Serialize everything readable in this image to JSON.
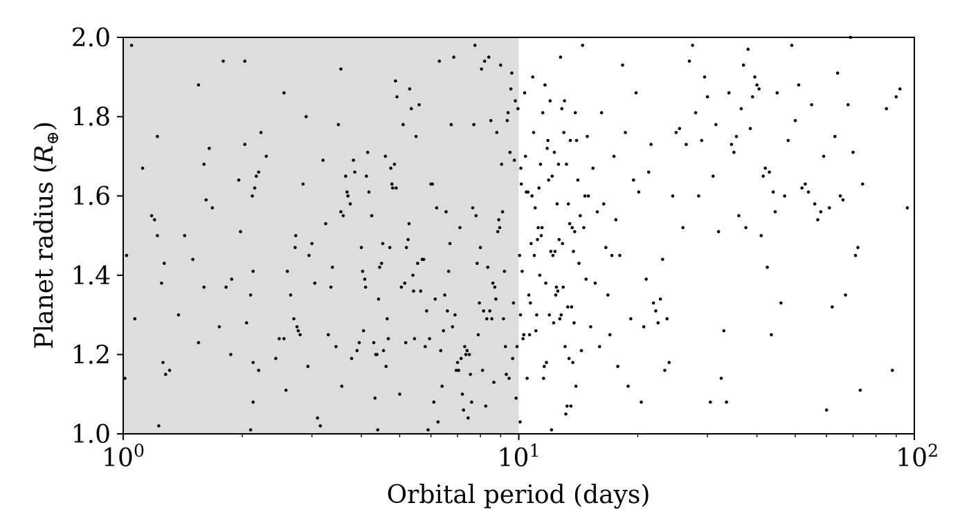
{
  "chart_data": {
    "type": "scatter",
    "title": "",
    "xlabel": "Orbital period (days)",
    "ylabel_text": "Planet radius (",
    "ylabel_symbol": "R",
    "ylabel_subscript": "⊕",
    "ylabel_close": ")",
    "xscale": "log",
    "xlim": [
      1,
      100
    ],
    "ylim": [
      1.0,
      2.0
    ],
    "x_ticks": [
      {
        "value": 1,
        "base": "10",
        "exp": "0"
      },
      {
        "value": 10,
        "base": "10",
        "exp": "1"
      },
      {
        "value": 100,
        "base": "10",
        "exp": "2"
      }
    ],
    "y_ticks": [
      {
        "value": 1.0,
        "label": "1.0"
      },
      {
        "value": 1.2,
        "label": "1.2"
      },
      {
        "value": 1.4,
        "label": "1.4"
      },
      {
        "value": 1.6,
        "label": "1.6"
      },
      {
        "value": 1.8,
        "label": "1.8"
      },
      {
        "value": 2.0,
        "label": "2.0"
      }
    ],
    "shaded_region": {
      "x": [
        1,
        10
      ],
      "color": "#dddddd"
    },
    "marker_color": "#000000",
    "grid": false,
    "points": [
      [
        1.05,
        1.98
      ],
      [
        1.02,
        1.45
      ],
      [
        1.01,
        1.14
      ],
      [
        1.07,
        1.29
      ],
      [
        1.12,
        1.67
      ],
      [
        1.18,
        1.55
      ],
      [
        1.2,
        1.54
      ],
      [
        1.22,
        1.75
      ],
      [
        1.22,
        1.5
      ],
      [
        1.25,
        1.38
      ],
      [
        1.27,
        1.43
      ],
      [
        1.26,
        1.18
      ],
      [
        1.28,
        1.15
      ],
      [
        1.31,
        1.16
      ],
      [
        1.23,
        1.02
      ],
      [
        1.38,
        1.3
      ],
      [
        1.43,
        1.5
      ],
      [
        1.5,
        1.44
      ],
      [
        1.55,
        1.88
      ],
      [
        1.6,
        1.68
      ],
      [
        1.62,
        1.59
      ],
      [
        1.65,
        1.72
      ],
      [
        1.68,
        1.57
      ],
      [
        1.6,
        1.37
      ],
      [
        1.55,
        1.23
      ],
      [
        1.75,
        1.27
      ],
      [
        1.82,
        1.37
      ],
      [
        1.87,
        1.2
      ],
      [
        1.88,
        1.39
      ],
      [
        1.96,
        1.64
      ],
      [
        1.98,
        1.51
      ],
      [
        2.03,
        1.73
      ],
      [
        1.79,
        1.94
      ],
      [
        2.03,
        1.94
      ],
      [
        2.12,
        1.6
      ],
      [
        2.15,
        1.62
      ],
      [
        2.17,
        1.65
      ],
      [
        2.2,
        1.66
      ],
      [
        2.23,
        1.76
      ],
      [
        2.13,
        1.41
      ],
      [
        2.1,
        1.35
      ],
      [
        2.05,
        1.28
      ],
      [
        2.13,
        1.18
      ],
      [
        2.2,
        1.16
      ],
      [
        2.13,
        1.08
      ],
      [
        2.1,
        1.01
      ],
      [
        2.3,
        1.7
      ],
      [
        2.43,
        1.19
      ],
      [
        2.48,
        1.24
      ],
      [
        2.55,
        1.24
      ],
      [
        2.58,
        1.11
      ],
      [
        2.6,
        1.41
      ],
      [
        2.55,
        1.86
      ],
      [
        2.65,
        1.35
      ],
      [
        2.7,
        1.29
      ],
      [
        2.72,
        1.47
      ],
      [
        2.73,
        1.5
      ],
      [
        2.75,
        1.27
      ],
      [
        2.77,
        1.26
      ],
      [
        2.8,
        1.25
      ],
      [
        2.85,
        1.63
      ],
      [
        2.9,
        1.8
      ],
      [
        2.95,
        1.45
      ],
      [
        2.93,
        1.17
      ],
      [
        3.0,
        1.48
      ],
      [
        3.05,
        1.38
      ],
      [
        3.1,
        1.04
      ],
      [
        3.15,
        1.02
      ],
      [
        3.2,
        1.69
      ],
      [
        3.25,
        1.53
      ],
      [
        3.3,
        1.25
      ],
      [
        3.35,
        1.37
      ],
      [
        3.38,
        1.42
      ],
      [
        3.45,
        1.22
      ],
      [
        3.5,
        1.78
      ],
      [
        3.55,
        1.92
      ],
      [
        3.55,
        1.56
      ],
      [
        3.57,
        1.12
      ],
      [
        3.6,
        1.55
      ],
      [
        3.65,
        1.65
      ],
      [
        3.68,
        1.61
      ],
      [
        3.7,
        1.6
      ],
      [
        3.75,
        1.58
      ],
      [
        3.78,
        1.19
      ],
      [
        3.82,
        1.69
      ],
      [
        3.85,
        1.66
      ],
      [
        3.9,
        1.21
      ],
      [
        3.95,
        1.23
      ],
      [
        4.0,
        1.47
      ],
      [
        4.03,
        1.41
      ],
      [
        4.05,
        1.26
      ],
      [
        4.08,
        1.39
      ],
      [
        4.1,
        1.37
      ],
      [
        4.12,
        1.65
      ],
      [
        4.15,
        1.71
      ],
      [
        4.18,
        1.61
      ],
      [
        4.25,
        1.55
      ],
      [
        4.3,
        1.23
      ],
      [
        4.33,
        1.09
      ],
      [
        4.35,
        1.2
      ],
      [
        4.38,
        1.2
      ],
      [
        4.4,
        1.01
      ],
      [
        4.42,
        1.34
      ],
      [
        4.45,
        1.42
      ],
      [
        4.5,
        1.43
      ],
      [
        4.53,
        1.48
      ],
      [
        4.55,
        1.21
      ],
      [
        4.6,
        1.7
      ],
      [
        4.62,
        1.17
      ],
      [
        4.65,
        1.29
      ],
      [
        4.68,
        1.24
      ],
      [
        4.72,
        1.47
      ],
      [
        4.75,
        1.67
      ],
      [
        4.78,
        1.63
      ],
      [
        4.8,
        1.62
      ],
      [
        4.85,
        1.68
      ],
      [
        4.88,
        1.89
      ],
      [
        4.9,
        1.62
      ],
      [
        4.92,
        1.85
      ],
      [
        5.0,
        1.1
      ],
      [
        5.05,
        1.37
      ],
      [
        5.1,
        1.78
      ],
      [
        5.15,
        1.38
      ],
      [
        5.18,
        1.23
      ],
      [
        5.2,
        1.47
      ],
      [
        5.25,
        1.49
      ],
      [
        5.28,
        1.53
      ],
      [
        5.3,
        1.87
      ],
      [
        5.35,
        1.82
      ],
      [
        5.4,
        1.4
      ],
      [
        5.42,
        1.36
      ],
      [
        5.45,
        1.24
      ],
      [
        5.5,
        1.75
      ],
      [
        5.55,
        1.43
      ],
      [
        5.6,
        1.83
      ],
      [
        5.65,
        1.36
      ],
      [
        5.7,
        1.44
      ],
      [
        5.75,
        1.44
      ],
      [
        5.8,
        1.22
      ],
      [
        5.85,
        1.31
      ],
      [
        5.9,
        1.01
      ],
      [
        5.95,
        1.24
      ],
      [
        6.0,
        1.63
      ],
      [
        6.05,
        1.63
      ],
      [
        6.1,
        1.08
      ],
      [
        6.15,
        1.34
      ],
      [
        6.2,
        1.57
      ],
      [
        6.25,
        1.03
      ],
      [
        6.3,
        1.94
      ],
      [
        6.35,
        1.21
      ],
      [
        6.4,
        1.12
      ],
      [
        6.45,
        1.26
      ],
      [
        6.5,
        1.35
      ],
      [
        6.55,
        1.56
      ],
      [
        6.6,
        1.31
      ],
      [
        6.65,
        1.41
      ],
      [
        6.7,
        1.48
      ],
      [
        6.75,
        1.78
      ],
      [
        6.8,
        1.27
      ],
      [
        6.85,
        1.95
      ],
      [
        6.9,
        1.3
      ],
      [
        6.95,
        1.16
      ],
      [
        7.0,
        1.18
      ],
      [
        7.05,
        1.16
      ],
      [
        7.1,
        1.52
      ],
      [
        7.15,
        1.19
      ],
      [
        7.2,
        1.1
      ],
      [
        7.25,
        1.06
      ],
      [
        7.3,
        1.22
      ],
      [
        7.35,
        1.2
      ],
      [
        7.4,
        1.21
      ],
      [
        7.45,
        1.04
      ],
      [
        7.5,
        1.2
      ],
      [
        7.55,
        1.15
      ],
      [
        7.6,
        1.08
      ],
      [
        7.65,
        1.57
      ],
      [
        7.7,
        1.78
      ],
      [
        7.75,
        1.98
      ],
      [
        7.8,
        1.55
      ],
      [
        7.85,
        1.43
      ],
      [
        7.9,
        1.25
      ],
      [
        7.95,
        1.33
      ],
      [
        8.0,
        1.47
      ],
      [
        8.05,
        1.92
      ],
      [
        8.1,
        1.16
      ],
      [
        8.15,
        1.31
      ],
      [
        8.2,
        1.94
      ],
      [
        8.25,
        1.07
      ],
      [
        8.3,
        1.29
      ],
      [
        8.35,
        1.42
      ],
      [
        8.4,
        1.95
      ],
      [
        8.45,
        1.31
      ],
      [
        8.5,
        1.79
      ],
      [
        8.55,
        1.29
      ],
      [
        8.6,
        1.38
      ],
      [
        8.65,
        1.13
      ],
      [
        8.7,
        1.37
      ],
      [
        8.75,
        1.34
      ],
      [
        8.8,
        1.76
      ],
      [
        8.85,
        1.51
      ],
      [
        8.9,
        1.54
      ],
      [
        8.95,
        1.52
      ],
      [
        9.0,
        1.93
      ],
      [
        9.05,
        1.68
      ],
      [
        9.1,
        1.56
      ],
      [
        9.15,
        1.29
      ],
      [
        9.2,
        1.41
      ],
      [
        9.25,
        1.22
      ],
      [
        9.3,
        1.15
      ],
      [
        9.35,
        1.79
      ],
      [
        9.4,
        1.81
      ],
      [
        9.45,
        1.14
      ],
      [
        9.5,
        1.71
      ],
      [
        9.55,
        1.87
      ],
      [
        9.6,
        1.91
      ],
      [
        9.65,
        1.19
      ],
      [
        9.7,
        1.33
      ],
      [
        9.75,
        1.69
      ],
      [
        9.8,
        1.84
      ],
      [
        9.85,
        1.09
      ],
      [
        9.9,
        1.22
      ],
      [
        9.95,
        1.82
      ],
      [
        10.05,
        1.45
      ],
      [
        10.08,
        1.03
      ],
      [
        10.1,
        1.3
      ],
      [
        10.12,
        1.67
      ],
      [
        10.15,
        1.63
      ],
      [
        10.2,
        1.41
      ],
      [
        10.25,
        1.24
      ],
      [
        10.3,
        1.25
      ],
      [
        10.35,
        1.86
      ],
      [
        10.4,
        1.7
      ],
      [
        10.45,
        1.61
      ],
      [
        10.5,
        1.14
      ],
      [
        10.55,
        1.61
      ],
      [
        10.6,
        1.35
      ],
      [
        10.65,
        1.25
      ],
      [
        10.7,
        1.33
      ],
      [
        10.75,
        1.48
      ],
      [
        10.8,
        1.6
      ],
      [
        10.85,
        1.9
      ],
      [
        10.9,
        1.76
      ],
      [
        10.95,
        1.45
      ],
      [
        11.0,
        1.57
      ],
      [
        11.05,
        1.26
      ],
      [
        11.1,
        1.3
      ],
      [
        11.15,
        1.49
      ],
      [
        11.2,
        1.52
      ],
      [
        11.25,
        1.62
      ],
      [
        11.3,
        1.4
      ],
      [
        11.35,
        1.68
      ],
      [
        11.4,
        1.5
      ],
      [
        11.45,
        1.52
      ],
      [
        11.5,
        1.81
      ],
      [
        11.55,
        1.14
      ],
      [
        11.6,
        1.17
      ],
      [
        11.65,
        1.88
      ],
      [
        11.7,
        1.38
      ],
      [
        11.75,
        1.18
      ],
      [
        11.8,
        1.72
      ],
      [
        11.85,
        1.74
      ],
      [
        11.9,
        1.64
      ],
      [
        11.95,
        1.3
      ],
      [
        12.0,
        1.84
      ],
      [
        12.05,
        1.46
      ],
      [
        12.1,
        1.01
      ],
      [
        12.15,
        1.65
      ],
      [
        12.2,
        1.45
      ],
      [
        12.25,
        1.28
      ],
      [
        12.3,
        1.71
      ],
      [
        12.35,
        1.46
      ],
      [
        12.4,
        1.35
      ],
      [
        12.45,
        1.37
      ],
      [
        12.5,
        1.58
      ],
      [
        12.55,
        1.36
      ],
      [
        12.6,
        1.68
      ],
      [
        12.65,
        1.49
      ],
      [
        12.7,
        1.29
      ],
      [
        12.75,
        1.95
      ],
      [
        12.8,
        1.3
      ],
      [
        12.85,
        1.82
      ],
      [
        12.9,
        1.48
      ],
      [
        12.95,
        1.37
      ],
      [
        13.0,
        1.76
      ],
      [
        13.05,
        1.84
      ],
      [
        13.1,
        1.22
      ],
      [
        13.15,
        1.05
      ],
      [
        13.2,
        1.68
      ],
      [
        13.25,
        1.07
      ],
      [
        13.3,
        1.32
      ],
      [
        13.35,
        1.58
      ],
      [
        13.4,
        1.19
      ],
      [
        13.45,
        1.53
      ],
      [
        13.5,
        1.74
      ],
      [
        13.55,
        1.07
      ],
      [
        13.6,
        1.32
      ],
      [
        13.65,
        1.52
      ],
      [
        13.7,
        1.18
      ],
      [
        13.75,
        1.46
      ],
      [
        13.8,
        1.28
      ],
      [
        13.85,
        1.51
      ],
      [
        13.9,
        1.81
      ],
      [
        13.95,
        1.12
      ],
      [
        14.0,
        1.74
      ],
      [
        14.1,
        1.64
      ],
      [
        14.2,
        1.43
      ],
      [
        14.3,
        1.55
      ],
      [
        14.4,
        1.21
      ],
      [
        14.5,
        1.98
      ],
      [
        14.6,
        1.52
      ],
      [
        14.7,
        1.6
      ],
      [
        14.8,
        1.39
      ],
      [
        14.9,
        1.75
      ],
      [
        15.0,
        1.6
      ],
      [
        15.2,
        1.27
      ],
      [
        15.4,
        1.67
      ],
      [
        15.6,
        1.38
      ],
      [
        15.8,
        1.56
      ],
      [
        16.0,
        1.22
      ],
      [
        16.2,
        1.81
      ],
      [
        16.4,
        1.58
      ],
      [
        16.6,
        1.47
      ],
      [
        16.8,
        1.35
      ],
      [
        17.0,
        1.25
      ],
      [
        17.2,
        1.45
      ],
      [
        17.4,
        1.7
      ],
      [
        17.6,
        1.54
      ],
      [
        17.8,
        1.17
      ],
      [
        18.0,
        1.45
      ],
      [
        18.3,
        1.93
      ],
      [
        18.6,
        1.76
      ],
      [
        18.9,
        1.12
      ],
      [
        19.2,
        1.29
      ],
      [
        19.5,
        1.64
      ],
      [
        19.8,
        1.86
      ],
      [
        20.1,
        1.61
      ],
      [
        20.4,
        1.08
      ],
      [
        20.7,
        1.27
      ],
      [
        21.0,
        1.39
      ],
      [
        21.3,
        1.66
      ],
      [
        21.6,
        1.73
      ],
      [
        21.9,
        1.33
      ],
      [
        22.2,
        1.31
      ],
      [
        22.5,
        1.28
      ],
      [
        22.8,
        1.34
      ],
      [
        23.1,
        1.44
      ],
      [
        23.4,
        1.16
      ],
      [
        23.7,
        1.29
      ],
      [
        24.0,
        1.18
      ],
      [
        24.5,
        1.6
      ],
      [
        25.0,
        1.76
      ],
      [
        25.5,
        1.77
      ],
      [
        26.0,
        1.52
      ],
      [
        26.5,
        1.73
      ],
      [
        27.0,
        1.94
      ],
      [
        27.5,
        1.98
      ],
      [
        28.0,
        1.81
      ],
      [
        28.5,
        1.6
      ],
      [
        29.0,
        1.74
      ],
      [
        29.5,
        1.9
      ],
      [
        30.0,
        1.85
      ],
      [
        30.5,
        1.08
      ],
      [
        31.0,
        1.65
      ],
      [
        31.5,
        1.78
      ],
      [
        32.0,
        1.51
      ],
      [
        32.5,
        1.14
      ],
      [
        33.0,
        1.26
      ],
      [
        33.5,
        1.08
      ],
      [
        34.0,
        1.86
      ],
      [
        34.5,
        1.73
      ],
      [
        35.0,
        1.71
      ],
      [
        35.5,
        1.75
      ],
      [
        36.0,
        1.55
      ],
      [
        36.5,
        1.82
      ],
      [
        37.0,
        1.93
      ],
      [
        37.5,
        1.52
      ],
      [
        38.0,
        1.97
      ],
      [
        38.5,
        1.77
      ],
      [
        39.0,
        1.85
      ],
      [
        39.5,
        1.9
      ],
      [
        40.0,
        1.88
      ],
      [
        40.5,
        1.87
      ],
      [
        41.0,
        1.5
      ],
      [
        41.5,
        1.65
      ],
      [
        42.0,
        1.67
      ],
      [
        42.5,
        1.42
      ],
      [
        43.0,
        1.66
      ],
      [
        43.5,
        1.25
      ],
      [
        44.0,
        1.61
      ],
      [
        44.5,
        1.56
      ],
      [
        45.0,
        1.86
      ],
      [
        46.0,
        1.33
      ],
      [
        47.0,
        1.6
      ],
      [
        48.0,
        1.74
      ],
      [
        49.0,
        1.98
      ],
      [
        50.0,
        1.79
      ],
      [
        51.0,
        1.88
      ],
      [
        52.0,
        1.62
      ],
      [
        53.0,
        1.63
      ],
      [
        54.0,
        1.61
      ],
      [
        55.0,
        1.83
      ],
      [
        56.0,
        1.58
      ],
      [
        57.0,
        1.54
      ],
      [
        58.0,
        1.56
      ],
      [
        59.0,
        1.7
      ],
      [
        60.0,
        1.06
      ],
      [
        61.0,
        1.57
      ],
      [
        62.0,
        1.32
      ],
      [
        63.0,
        1.75
      ],
      [
        64.0,
        1.91
      ],
      [
        65.0,
        1.6
      ],
      [
        66.0,
        1.59
      ],
      [
        67.0,
        1.35
      ],
      [
        68.0,
        1.83
      ],
      [
        69.0,
        2.0
      ],
      [
        70.0,
        1.71
      ],
      [
        71.0,
        1.45
      ],
      [
        72.0,
        1.47
      ],
      [
        73.0,
        1.11
      ],
      [
        74.0,
        1.63
      ],
      [
        85.0,
        1.82
      ],
      [
        88.0,
        1.16
      ],
      [
        90.0,
        1.85
      ],
      [
        92.0,
        1.87
      ],
      [
        96.0,
        1.57
      ]
    ]
  }
}
